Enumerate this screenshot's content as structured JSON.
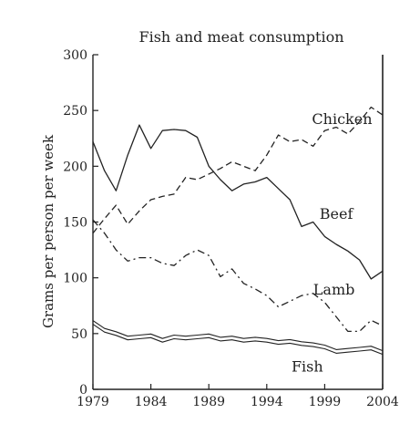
{
  "chart_data": {
    "type": "line",
    "title": "Fish and meat consumption",
    "xlabel": "",
    "ylabel": "Grams per person per week",
    "xlim": [
      1979,
      2004
    ],
    "ylim": [
      0,
      300
    ],
    "x_ticks": [
      "1979",
      "1984",
      "1989",
      "1994",
      "1999",
      "2004"
    ],
    "y_ticks": [
      "0",
      "50",
      "100",
      "150",
      "200",
      "250",
      "300"
    ],
    "grid": false,
    "legend": "inline labels",
    "x": [
      1979,
      1980,
      1981,
      1982,
      1983,
      1984,
      1985,
      1986,
      1987,
      1988,
      1989,
      1990,
      1991,
      1992,
      1993,
      1994,
      1995,
      1996,
      1997,
      1998,
      1999,
      2000,
      2001,
      2002,
      2003,
      2004
    ],
    "series": [
      {
        "name": "Chicken",
        "style": "dashed",
        "values": [
          140,
          153,
          165,
          148,
          160,
          170,
          173,
          175,
          190,
          188,
          193,
          198,
          204,
          200,
          196,
          210,
          228,
          222,
          224,
          218,
          232,
          235,
          229,
          240,
          253,
          246
        ]
      },
      {
        "name": "Beef",
        "style": "solid",
        "values": [
          222,
          196,
          178,
          210,
          237,
          216,
          232,
          233,
          232,
          226,
          200,
          188,
          178,
          184,
          186,
          190,
          180,
          170,
          146,
          150,
          137,
          130,
          124,
          116,
          99,
          106
        ]
      },
      {
        "name": "Lamb",
        "style": "dash-dot",
        "values": [
          152,
          140,
          125,
          115,
          118,
          118,
          113,
          111,
          120,
          125,
          120,
          101,
          108,
          95,
          90,
          84,
          74,
          79,
          84,
          86,
          78,
          65,
          52,
          52,
          62,
          57
        ]
      },
      {
        "name": "Fish",
        "style": "double",
        "values": [
          60,
          53,
          50,
          46,
          47,
          48,
          44,
          47,
          46,
          47,
          48,
          45,
          46,
          44,
          45,
          44,
          42,
          43,
          41,
          40,
          38,
          34,
          35,
          36,
          37,
          33
        ]
      }
    ]
  }
}
